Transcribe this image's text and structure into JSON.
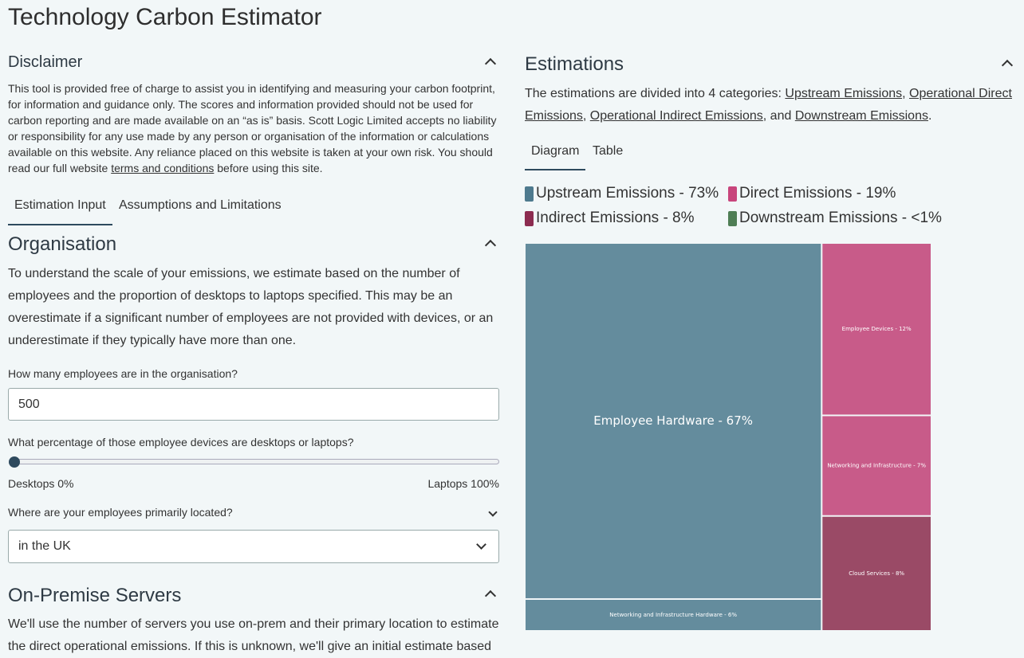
{
  "header": {
    "title": "Technology Carbon Estimator"
  },
  "disclaimer": {
    "title": "Disclaimer",
    "text_before": "This tool is provided free of charge to assist you in identifying and measuring your carbon footprint, for information and guidance only. The scores and information provided should not be used for carbon reporting and are made available on an “as is” basis. Scott Logic Limited accepts no liability or responsibility for any use made by any person or organisation of the information or calculations available on this website. Any reliance placed on this website is taken at your own risk. You should read our full website ",
    "link": "terms and conditions",
    "text_after": " before using this site."
  },
  "tabs": [
    "Estimation Input",
    "Assumptions and Limitations"
  ],
  "organisation": {
    "title": "Organisation",
    "text": "To understand the scale of your emissions, we estimate based on the number of employees and the proportion of desktops to laptops specified. This may be an overestimate if a significant number of employees are not provided with devices, or an underestimate if they typically have more than one.",
    "employees_label": "How many employees are in the organisation?",
    "employees_value": "500",
    "devices_label": "What percentage of those employee devices are desktops or laptops?",
    "slider_min_label": "Desktops 0%",
    "slider_max_label": "Laptops 100%",
    "location_label": "Where are your employees primarily located?",
    "location_value": "in the UK"
  },
  "servers": {
    "title": "On-Premise Servers",
    "text": "We'll use the number of servers you use on-prem and their primary location to estimate the direct operational emissions. If this is unknown, we'll give an initial estimate based"
  },
  "estimations": {
    "title": "Estimations",
    "intro": "The estimations are divided into 4 categories: ",
    "links": [
      "Upstream Emissions",
      "Operational Direct Emissions",
      "Operational Indirect Emissions",
      "Downstream Emissions"
    ],
    "sep1": ", ",
    "sep2": ", ",
    "sep3": ", and ",
    "end": ".",
    "tabs": [
      "Diagram",
      "Table"
    ]
  },
  "treemap": {
    "legend": [
      {
        "label": "Upstream Emissions - 73%",
        "color": "#4e7a8e"
      },
      {
        "label": "Direct Emissions - 19%",
        "color": "#c8457c"
      },
      {
        "label": "Indirect Emissions - 8%",
        "color": "#8c2c50"
      },
      {
        "label": "Downstream Emissions - <1%",
        "color": "#4f7e55"
      }
    ],
    "columns": [
      {
        "items": [
          {
            "label": "Employee Hardware - 67%",
            "value": 67,
            "color": "#648c9d"
          },
          {
            "label": "Networking and Infrastructure Hardware - 6%",
            "value": 6,
            "color": "#648c9d"
          }
        ]
      },
      {
        "items": [
          {
            "label": "Employee Devices - 12%",
            "value": 12,
            "color": "#c85b89"
          },
          {
            "label": "Networking and Infrastructure - 7%",
            "value": 7,
            "color": "#c85b89"
          },
          {
            "label": "Cloud Services - 8%",
            "value": 8,
            "color": "#9a4a66"
          }
        ]
      }
    ]
  }
}
